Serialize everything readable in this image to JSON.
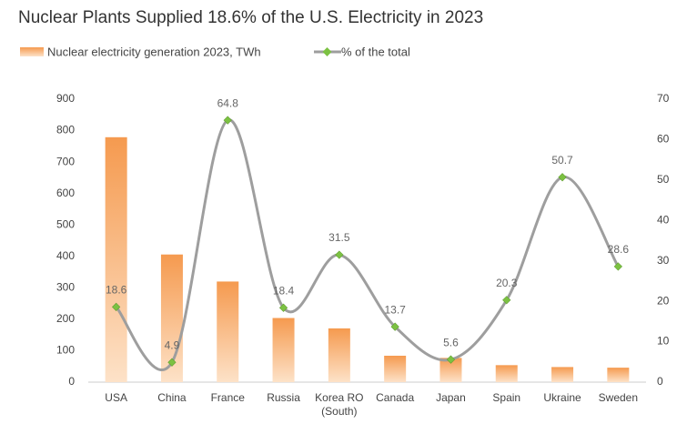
{
  "chart_data": {
    "type": "bar-line",
    "title": "Nuclear Plants Supplied 18.6% of the U.S. Electricity in 2023",
    "categories": [
      "USA",
      "China",
      "France",
      "Russia",
      "Korea RO (South)",
      "Canada",
      "Japan",
      "Spain",
      "Ukraine",
      "Sweden"
    ],
    "series": [
      {
        "name": "Nuclear electricity generation 2023, TWh",
        "type": "bar",
        "color": "#f59a4f",
        "values": [
          779,
          406,
          320,
          204,
          171,
          84,
          77,
          54,
          48,
          46
        ]
      },
      {
        "name": "% of the total",
        "type": "line",
        "axis": "y2",
        "color": "#9e9e9e",
        "marker_color": "#7cc142",
        "values": [
          18.6,
          4.9,
          64.8,
          18.4,
          31.5,
          13.7,
          5.6,
          20.3,
          50.7,
          28.6
        ]
      }
    ],
    "ylim": [
      0,
      900
    ],
    "yticks": [
      0,
      100,
      200,
      300,
      400,
      500,
      600,
      700,
      800,
      900
    ],
    "y2lim": [
      0,
      70
    ],
    "y2ticks": [
      0,
      10,
      20,
      30,
      40,
      50,
      60,
      70
    ]
  }
}
